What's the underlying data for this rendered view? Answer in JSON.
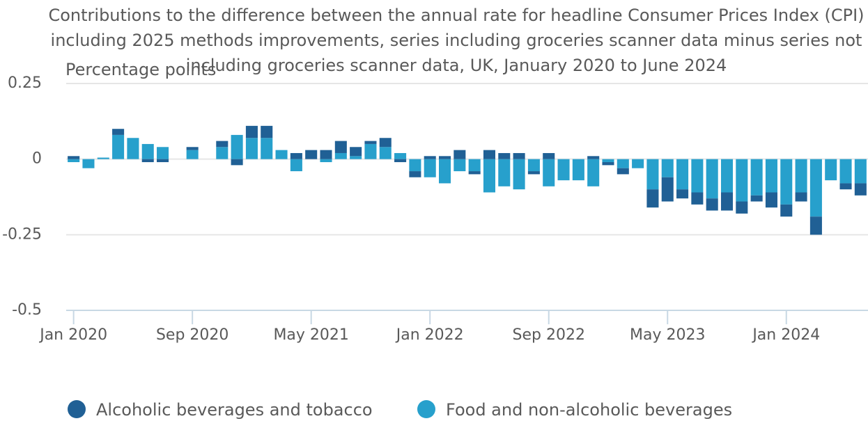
{
  "chart_data": {
    "type": "stacked_bar",
    "title": "Contributions to the difference between the annual rate for headline Consumer Prices Index (CPI) including 2025 methods improvements, series including groceries scanner data minus series not including groceries scanner data, UK, January 2020 to June 2024",
    "y_label": "Percentage points",
    "categories": [
      "Jan 2020",
      null,
      null,
      null,
      null,
      null,
      null,
      null,
      "Sep 2020",
      null,
      null,
      null,
      null,
      null,
      null,
      null,
      "May 2021",
      null,
      null,
      null,
      null,
      null,
      null,
      null,
      "Jan 2022",
      null,
      null,
      null,
      null,
      null,
      null,
      null,
      "Sep 2022",
      null,
      null,
      null,
      null,
      null,
      null,
      null,
      "May 2023",
      null,
      null,
      null,
      null,
      null,
      null,
      null,
      "Jan 2024",
      null,
      null,
      null,
      null,
      null
    ],
    "series": [
      {
        "name": "Alcoholic beverages and tobacco",
        "color": "#206095",
        "values": [
          0.01,
          0,
          0,
          0.02,
          0,
          -0.01,
          -0.01,
          0,
          0.01,
          0,
          0.02,
          -0.02,
          0.04,
          0.04,
          0,
          0.02,
          0.03,
          0.03,
          0.04,
          0.03,
          0.01,
          0.03,
          -0.01,
          -0.02,
          0.01,
          0.01,
          0.03,
          -0.01,
          0.03,
          0.02,
          0.02,
          -0.01,
          0.02,
          0,
          0,
          0.01,
          -0.01,
          -0.02,
          0,
          -0.06,
          -0.08,
          -0.03,
          -0.04,
          -0.04,
          -0.06,
          -0.04,
          -0.02,
          -0.05,
          -0.04,
          -0.03,
          -0.06,
          0,
          -0.02,
          -0.04
        ]
      },
      {
        "name": "Food and non-alcoholic beverages",
        "color": "#27a0cc",
        "values": [
          -0.01,
          -0.03,
          0.005,
          0.08,
          0.07,
          0.05,
          0.04,
          0,
          0.03,
          0,
          0.04,
          0.08,
          0.07,
          0.07,
          0.03,
          -0.04,
          0,
          -0.01,
          0.02,
          0.01,
          0.05,
          0.04,
          0.02,
          -0.04,
          -0.06,
          -0.08,
          -0.04,
          -0.04,
          -0.11,
          -0.09,
          -0.1,
          -0.04,
          -0.09,
          -0.07,
          -0.07,
          -0.09,
          -0.01,
          -0.03,
          -0.03,
          -0.1,
          -0.06,
          -0.1,
          -0.11,
          -0.13,
          -0.11,
          -0.14,
          -0.12,
          -0.11,
          -0.15,
          -0.11,
          -0.19,
          -0.07,
          -0.08,
          -0.08
        ]
      }
    ],
    "ylim": [
      -0.5,
      0.25
    ],
    "yticks": [
      0.25,
      0,
      -0.25,
      -0.5
    ],
    "grid": true
  }
}
